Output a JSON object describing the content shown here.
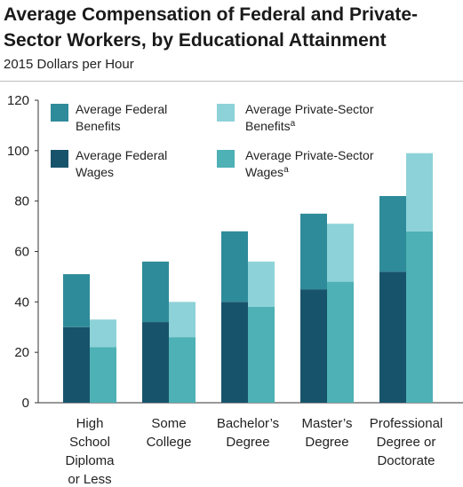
{
  "chart_data": {
    "type": "bar",
    "title_lines": [
      "Average Compensation of Federal and Private-",
      "Sector Workers, by Educational Attainment"
    ],
    "subtitle": "2015 Dollars per Hour",
    "ylim": [
      0,
      120
    ],
    "yticks": [
      0,
      20,
      40,
      60,
      80,
      100,
      120
    ],
    "categories": [
      {
        "lines": [
          "High",
          "School",
          "Diploma",
          "or Less"
        ]
      },
      {
        "lines": [
          "Some",
          "College"
        ]
      },
      {
        "lines": [
          "Bachelor’s",
          "Degree"
        ]
      },
      {
        "lines": [
          "Master’s",
          "Degree"
        ]
      },
      {
        "lines": [
          "Professional",
          "Degree or",
          "Doctorate"
        ]
      }
    ],
    "series": [
      {
        "name": "Average Federal Wages",
        "key": "fed_wages",
        "color": "#17546b",
        "values": [
          30,
          32,
          40,
          45,
          52
        ]
      },
      {
        "name": "Average Federal Benefits",
        "key": "fed_benefits",
        "color": "#2e8b9a",
        "values": [
          21,
          24,
          28,
          30,
          30
        ]
      },
      {
        "name": "Average Private-Sector Wages",
        "key": "priv_wages",
        "color": "#4db1b5",
        "values": [
          22,
          26,
          38,
          48,
          68
        ]
      },
      {
        "name": "Average Private-Sector Benefits",
        "key": "priv_benefits",
        "color": "#8dd2d8",
        "values": [
          11,
          14,
          18,
          23,
          31
        ]
      }
    ],
    "legend": {
      "placement": "top-left",
      "items": [
        {
          "lines": [
            "Average Federal",
            "Benefits"
          ],
          "sup": "",
          "color": "#2e8b9a"
        },
        {
          "lines": [
            "Average Private-Sector",
            "Benefits"
          ],
          "sup": "a",
          "color": "#8dd2d8"
        },
        {
          "lines": [
            "Average Federal",
            "Wages"
          ],
          "sup": "",
          "color": "#17546b"
        },
        {
          "lines": [
            "Average Private-Sector",
            "Wages"
          ],
          "sup": "a",
          "color": "#4db1b5"
        }
      ]
    }
  }
}
